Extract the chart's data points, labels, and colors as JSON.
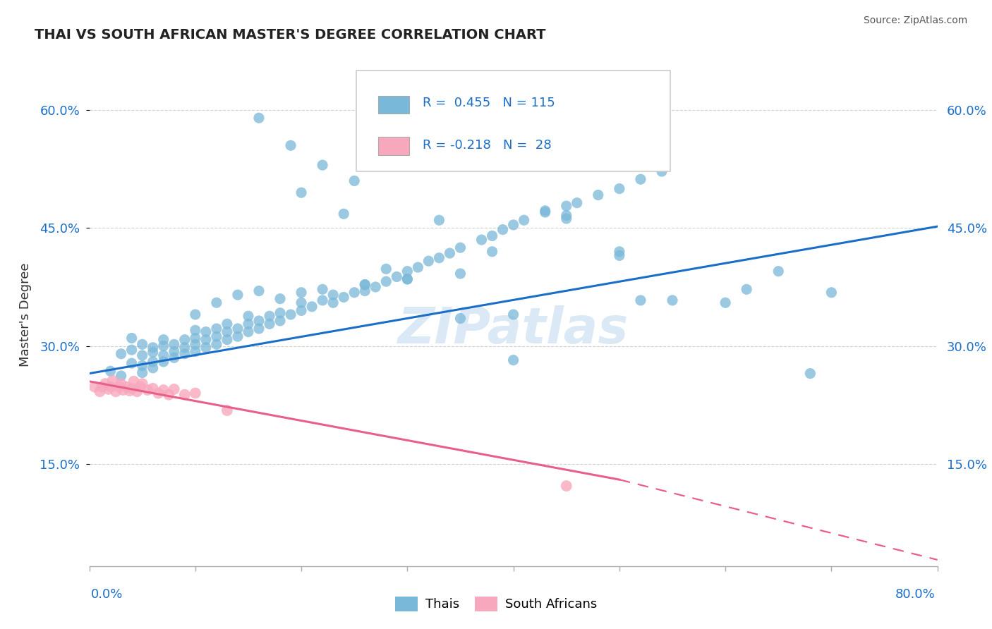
{
  "title": "THAI VS SOUTH AFRICAN MASTER'S DEGREE CORRELATION CHART",
  "source": "Source: ZipAtlas.com",
  "ylabel": "Master's Degree",
  "watermark": "ZIPatlas",
  "thai_color": "#7ab8d9",
  "sa_color": "#f8a8bc",
  "blue_line_color": "#1a6ec8",
  "pink_line_color": "#e8608a",
  "r_n_color": "#1a6ec8",
  "background_color": "#ffffff",
  "grid_color": "#cccccc",
  "ytick_labels": [
    "15.0%",
    "30.0%",
    "45.0%",
    "60.0%"
  ],
  "ytick_values": [
    0.15,
    0.3,
    0.45,
    0.6
  ],
  "xmin": 0.0,
  "xmax": 0.8,
  "ymin": 0.02,
  "ymax": 0.66,
  "blue_line_x": [
    0.0,
    0.8
  ],
  "blue_line_y": [
    0.265,
    0.452
  ],
  "pink_line_x0": 0.0,
  "pink_line_x1": 0.5,
  "pink_line_x2": 0.8,
  "pink_line_y0": 0.255,
  "pink_line_y1": 0.13,
  "pink_line_y2": 0.028,
  "thai_x": [
    0.02,
    0.03,
    0.03,
    0.04,
    0.04,
    0.04,
    0.05,
    0.05,
    0.05,
    0.05,
    0.06,
    0.06,
    0.06,
    0.06,
    0.07,
    0.07,
    0.07,
    0.07,
    0.08,
    0.08,
    0.08,
    0.09,
    0.09,
    0.09,
    0.1,
    0.1,
    0.1,
    0.1,
    0.11,
    0.11,
    0.11,
    0.12,
    0.12,
    0.12,
    0.13,
    0.13,
    0.13,
    0.14,
    0.14,
    0.15,
    0.15,
    0.15,
    0.16,
    0.16,
    0.17,
    0.17,
    0.18,
    0.18,
    0.19,
    0.2,
    0.2,
    0.21,
    0.22,
    0.23,
    0.23,
    0.24,
    0.25,
    0.26,
    0.26,
    0.27,
    0.28,
    0.29,
    0.3,
    0.31,
    0.32,
    0.33,
    0.34,
    0.35,
    0.37,
    0.38,
    0.39,
    0.4,
    0.41,
    0.43,
    0.45,
    0.46,
    0.48,
    0.5,
    0.52,
    0.54,
    0.1,
    0.12,
    0.14,
    0.16,
    0.18,
    0.2,
    0.22,
    0.26,
    0.3,
    0.35,
    0.2,
    0.25,
    0.3,
    0.35,
    0.4,
    0.45,
    0.5,
    0.55,
    0.62,
    0.68,
    0.24,
    0.28,
    0.33,
    0.38,
    0.43,
    0.52,
    0.22,
    0.19,
    0.16,
    0.4,
    0.45,
    0.5,
    0.6,
    0.65,
    0.7
  ],
  "thai_y": [
    0.268,
    0.262,
    0.29,
    0.278,
    0.295,
    0.31,
    0.266,
    0.275,
    0.288,
    0.302,
    0.272,
    0.28,
    0.292,
    0.298,
    0.28,
    0.288,
    0.3,
    0.308,
    0.285,
    0.293,
    0.302,
    0.29,
    0.298,
    0.308,
    0.293,
    0.302,
    0.31,
    0.32,
    0.298,
    0.308,
    0.318,
    0.302,
    0.312,
    0.322,
    0.308,
    0.318,
    0.328,
    0.312,
    0.322,
    0.318,
    0.328,
    0.338,
    0.322,
    0.332,
    0.328,
    0.338,
    0.332,
    0.342,
    0.34,
    0.345,
    0.355,
    0.35,
    0.358,
    0.355,
    0.365,
    0.362,
    0.368,
    0.37,
    0.378,
    0.375,
    0.382,
    0.388,
    0.395,
    0.4,
    0.408,
    0.412,
    0.418,
    0.425,
    0.435,
    0.44,
    0.448,
    0.454,
    0.46,
    0.47,
    0.478,
    0.482,
    0.492,
    0.5,
    0.512,
    0.522,
    0.34,
    0.355,
    0.365,
    0.37,
    0.36,
    0.368,
    0.372,
    0.378,
    0.385,
    0.392,
    0.495,
    0.51,
    0.385,
    0.335,
    0.282,
    0.466,
    0.415,
    0.358,
    0.372,
    0.265,
    0.468,
    0.398,
    0.46,
    0.42,
    0.472,
    0.358,
    0.53,
    0.555,
    0.59,
    0.34,
    0.462,
    0.42,
    0.355,
    0.395,
    0.368
  ],
  "sa_x": [
    0.005,
    0.01,
    0.012,
    0.015,
    0.018,
    0.02,
    0.022,
    0.025,
    0.028,
    0.03,
    0.032,
    0.035,
    0.038,
    0.04,
    0.042,
    0.045,
    0.048,
    0.05,
    0.055,
    0.06,
    0.065,
    0.07,
    0.075,
    0.08,
    0.09,
    0.1,
    0.13,
    0.45
  ],
  "sa_y": [
    0.248,
    0.242,
    0.248,
    0.252,
    0.245,
    0.248,
    0.256,
    0.242,
    0.248,
    0.252,
    0.244,
    0.248,
    0.243,
    0.246,
    0.255,
    0.242,
    0.248,
    0.252,
    0.244,
    0.246,
    0.24,
    0.244,
    0.238,
    0.245,
    0.238,
    0.24,
    0.218,
    0.122
  ],
  "bottom_legend": [
    "Thais",
    "South Africans"
  ]
}
